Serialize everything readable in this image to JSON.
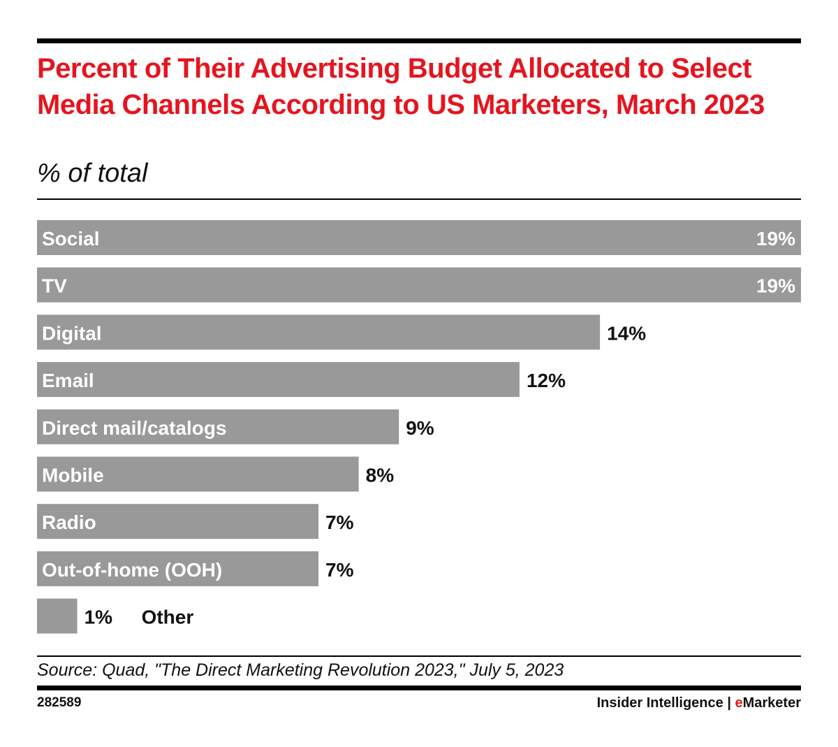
{
  "header": {
    "title": "Percent of Their Advertising Budget Allocated to Select Media Channels According to US Marketers, March 2023",
    "subtitle": "% of total"
  },
  "footer": {
    "source": "Source: Quad, \"The Direct Marketing Revolution 2023,\" July 5, 2023",
    "chart_id": "282589",
    "brand_prefix": "Insider Intelligence | ",
    "brand_e": "e",
    "brand_suffix": "Marketer"
  },
  "colors": {
    "bar": "#999999",
    "title": "#e4151f",
    "label_inside": "#ffffff",
    "label_outside": "#111111"
  },
  "chart_data": {
    "type": "bar",
    "orientation": "horizontal",
    "title": "Percent of Their Advertising Budget Allocated to Select Media Channels According to US Marketers, March 2023",
    "subtitle": "% of total",
    "categories": [
      "Social",
      "TV",
      "Digital",
      "Email",
      "Direct mail/catalogs",
      "Mobile",
      "Radio",
      "Out-of-home (OOH)",
      "Other"
    ],
    "values": [
      19,
      19,
      14,
      12,
      9,
      8,
      7,
      7,
      1
    ],
    "value_labels": [
      "19%",
      "19%",
      "14%",
      "12%",
      "9%",
      "8%",
      "7%",
      "7%",
      "1%"
    ],
    "xlabel": "",
    "ylabel": "",
    "xlim": [
      0,
      19
    ],
    "grid": false,
    "legend": "none"
  }
}
